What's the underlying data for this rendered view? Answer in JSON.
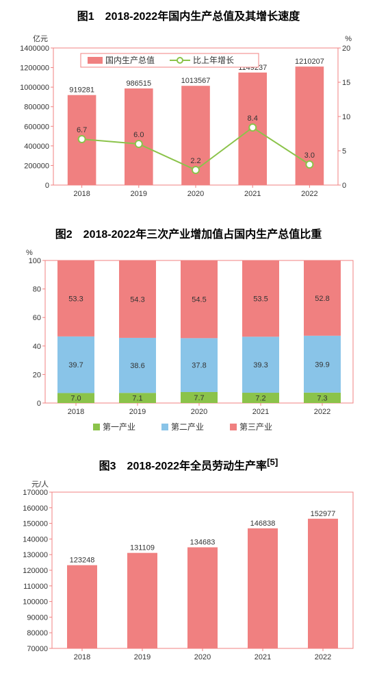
{
  "chart1": {
    "type": "bar+line",
    "title": "图1　2018-2022年国内生产总值及其增长速度",
    "title_fontsize": 14,
    "left_unit": "亿元",
    "right_unit": "%",
    "categories": [
      "2018",
      "2019",
      "2020",
      "2021",
      "2022"
    ],
    "bar_series": {
      "name": "国内生产总值",
      "values": [
        919281,
        986515,
        1013567,
        1149237,
        1210207
      ],
      "color": "#f08080"
    },
    "line_series": {
      "name": "比上年增长",
      "values": [
        6.7,
        6.0,
        2.2,
        8.4,
        3.0
      ],
      "color": "#8bc34a",
      "marker_fill": "#ffffff"
    },
    "y_left": {
      "min": 0,
      "max": 1400000,
      "step": 200000
    },
    "y_right": {
      "min": 0,
      "max": 20,
      "step": 5
    },
    "axis_color": "#f08080",
    "text_color": "#333333",
    "legend_bg": "#ffffff",
    "bar_width": 0.5,
    "line_width": 2,
    "marker_size": 5
  },
  "chart2": {
    "type": "stacked-bar",
    "title": "图2　2018-2022年三次产业增加值占国内生产总值比重",
    "title_fontsize": 14,
    "left_unit": "%",
    "categories": [
      "2018",
      "2019",
      "2020",
      "2021",
      "2022"
    ],
    "series": [
      {
        "name": "第一产业",
        "color": "#8bc34a",
        "values": [
          7.0,
          7.1,
          7.7,
          7.2,
          7.3
        ]
      },
      {
        "name": "第二产业",
        "color": "#89c4e8",
        "values": [
          39.7,
          38.6,
          37.8,
          39.3,
          39.9
        ]
      },
      {
        "name": "第三产业",
        "color": "#f08080",
        "values": [
          53.3,
          54.3,
          54.5,
          53.5,
          52.8
        ]
      }
    ],
    "y": {
      "min": 0,
      "max": 100,
      "step": 20
    },
    "axis_color": "#f08080",
    "bar_width": 0.6
  },
  "chart3": {
    "type": "bar",
    "title": "图3　2018-2022年全员劳动生产率",
    "title_superscript": "[5]",
    "title_fontsize": 14,
    "left_unit": "元/人",
    "categories": [
      "2018",
      "2019",
      "2020",
      "2021",
      "2022"
    ],
    "bar_series": {
      "values": [
        123248,
        131109,
        134683,
        146838,
        152977
      ],
      "color": "#f08080"
    },
    "y": {
      "min": 70000,
      "max": 170000,
      "step": 10000
    },
    "axis_color": "#f08080",
    "bar_width": 0.5
  }
}
